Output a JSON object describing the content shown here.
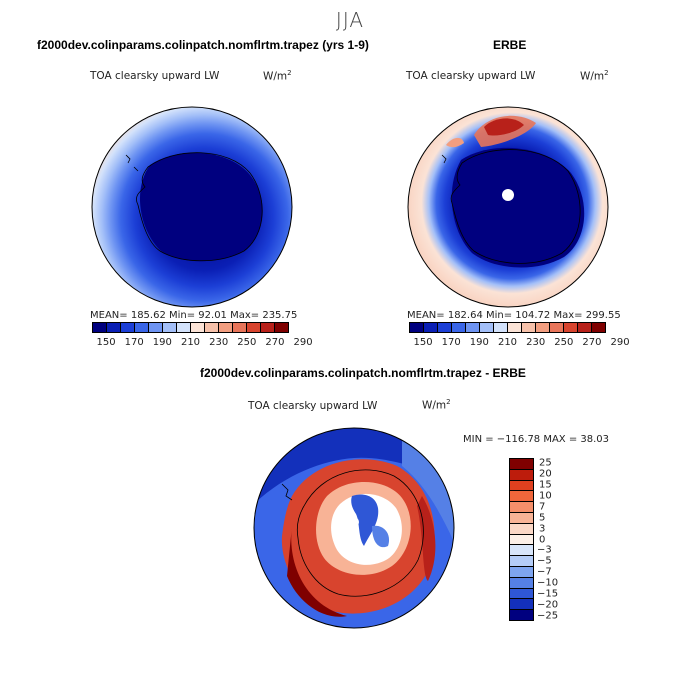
{
  "season": "JJA",
  "panels": [
    {
      "title": "f2000dev.colinparams.colinpatch.nomflrtm.trapez (yrs 1-9)",
      "variable": "TOA clearsky upward LW",
      "units": "W/m",
      "units_sup": "2",
      "stats": "MEAN= 185.62   Min=   92.01   Max= 235.75",
      "colorbar_ticks": [
        "150",
        "170",
        "190",
        "210",
        "230",
        "250",
        "270",
        "290"
      ]
    },
    {
      "title": "ERBE",
      "variable": "TOA clearsky upward LW",
      "units": "W/m",
      "units_sup": "2",
      "stats": "MEAN= 182.64   Min=  104.72   Max= 299.55",
      "colorbar_ticks": [
        "150",
        "170",
        "190",
        "210",
        "230",
        "250",
        "270",
        "290"
      ]
    }
  ],
  "diff": {
    "title": "f2000dev.colinparams.colinpatch.nomflrtm.trapez - ERBE",
    "variable": "TOA clearsky upward LW",
    "units": "W/m",
    "units_sup": "2",
    "stats": "MIN = −116.78 MAX =  38.03",
    "colorbar_ticks": [
      "25",
      "20",
      "15",
      "10",
      "7",
      "5",
      "3",
      "0",
      "−3",
      "−5",
      "−7",
      "−10",
      "−15",
      "−20",
      "−25"
    ]
  },
  "colors": {
    "abs_scale": [
      "#00007f",
      "#0a1fb5",
      "#1c3fd6",
      "#3a66e8",
      "#6e94f2",
      "#a3bff8",
      "#d3e2fb",
      "#fbe3d6",
      "#f6c1aa",
      "#f29e80",
      "#e8755a",
      "#d8442e",
      "#b8211a",
      "#7f0000"
    ],
    "diff_scale": [
      "#7f0000",
      "#bd1c0c",
      "#e0401f",
      "#f0663b",
      "#f58f6a",
      "#f8b396",
      "#fad7c6",
      "#fcf0e8",
      "#d8e6fb",
      "#b4cdf8",
      "#7ea5f0",
      "#5580e6",
      "#2f57d6",
      "#1330bb",
      "#00007f"
    ],
    "coast": "#000000"
  }
}
